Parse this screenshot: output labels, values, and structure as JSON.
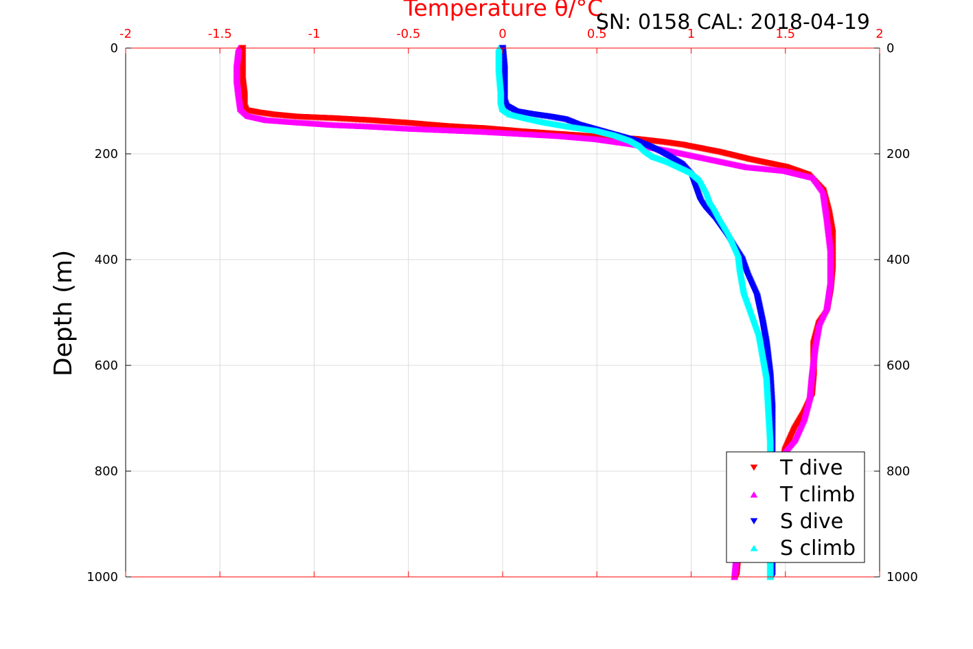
{
  "chart_data": {
    "type": "scatter",
    "title": "Temperature θ/°C",
    "subtitle": "SN: 0158  CAL: 2018-04-19",
    "xlabel": "Temperature θ/°C",
    "ylabel": "Depth (m)",
    "xlim": [
      -2,
      2
    ],
    "ylim": [
      0,
      1000
    ],
    "y_reversed": true,
    "grid": true,
    "legend_position": "bottom-right",
    "x_ticks": [
      "-2",
      "-1.5",
      "-1",
      "-0.5",
      "0",
      "0.5",
      "1",
      "1.5",
      "2"
    ],
    "y_ticks": [
      "0",
      "200",
      "400",
      "600",
      "800",
      "1000"
    ],
    "x_tick_values": [
      -2,
      -1.5,
      -1,
      -0.5,
      0,
      0.5,
      1,
      1.5,
      2
    ],
    "y_tick_values": [
      0,
      200,
      400,
      600,
      800,
      1000
    ],
    "colors": {
      "axis_top": "#ff0000",
      "grid": "#dcdcdc"
    },
    "series": [
      {
        "name": "T dive",
        "color": "#ff0000",
        "marker": "triangle-down",
        "x": [
          -1.38,
          -1.38,
          -1.38,
          -1.37,
          -1.37,
          -1.36,
          -1.3,
          -1.22,
          -1.1,
          -0.9,
          -0.7,
          -0.5,
          -0.3,
          -0.1,
          0.1,
          0.3,
          0.5,
          0.7,
          0.85,
          0.95,
          1.05,
          1.15,
          1.3,
          1.5,
          1.62,
          1.7,
          1.73,
          1.75,
          1.75,
          1.74,
          1.72,
          1.68,
          1.65,
          1.65,
          1.64,
          1.6,
          1.55,
          1.5,
          1.48,
          1.45,
          1.38,
          1.3,
          1.25,
          1.24
        ],
        "y": [
          0,
          30,
          60,
          90,
          110,
          118,
          122,
          126,
          130,
          133,
          137,
          142,
          148,
          152,
          158,
          163,
          168,
          172,
          178,
          183,
          190,
          197,
          210,
          225,
          240,
          270,
          310,
          350,
          420,
          460,
          500,
          520,
          560,
          620,
          660,
          690,
          720,
          760,
          800,
          830,
          870,
          920,
          960,
          1000
        ]
      },
      {
        "name": "T climb",
        "color": "#ff00ff",
        "marker": "triangle-up",
        "x": [
          -1.4,
          -1.41,
          -1.41,
          -1.4,
          -1.39,
          -1.35,
          -1.25,
          -1.1,
          -0.9,
          -0.7,
          -0.5,
          -0.3,
          -0.1,
          0.1,
          0.3,
          0.5,
          0.7,
          0.9,
          1.1,
          1.3,
          1.5,
          1.65,
          1.7,
          1.72,
          1.74,
          1.74,
          1.72,
          1.68,
          1.66,
          1.64,
          1.63,
          1.6,
          1.55,
          1.48,
          1.4,
          1.32,
          1.26,
          1.24,
          1.23
        ],
        "y": [
          0,
          30,
          60,
          90,
          115,
          128,
          136,
          140,
          145,
          148,
          152,
          155,
          158,
          162,
          166,
          172,
          182,
          195,
          210,
          225,
          232,
          245,
          270,
          320,
          380,
          440,
          490,
          520,
          560,
          620,
          660,
          700,
          740,
          770,
          820,
          870,
          920,
          960,
          1000
        ]
      },
      {
        "name": "S dive",
        "color": "#0000ff",
        "marker": "triangle-down",
        "x": [
          0.0,
          0.01,
          0.01,
          0.01,
          0.02,
          0.07,
          0.15,
          0.25,
          0.33,
          0.4,
          0.5,
          0.6,
          0.7,
          0.77,
          0.83,
          0.88,
          0.95,
          1.0,
          1.03,
          1.05,
          1.07,
          1.12,
          1.18,
          1.27,
          1.3,
          1.35,
          1.38,
          1.4,
          1.42,
          1.43,
          1.43,
          1.43,
          1.43,
          1.43
        ],
        "y": [
          0,
          40,
          80,
          100,
          110,
          120,
          125,
          130,
          135,
          145,
          155,
          165,
          175,
          185,
          195,
          205,
          220,
          240,
          270,
          290,
          300,
          320,
          350,
          400,
          430,
          470,
          520,
          560,
          620,
          680,
          740,
          800,
          900,
          1000
        ]
      },
      {
        "name": "S climb",
        "color": "#00ffff",
        "marker": "triangle-up",
        "x": [
          -0.02,
          -0.02,
          -0.01,
          -0.01,
          0.0,
          0.04,
          0.12,
          0.22,
          0.35,
          0.5,
          0.6,
          0.68,
          0.73,
          0.76,
          0.8,
          0.88,
          1.0,
          1.05,
          1.08,
          1.1,
          1.12,
          1.15,
          1.2,
          1.25,
          1.26,
          1.28,
          1.32,
          1.36,
          1.38,
          1.4,
          1.41,
          1.42,
          1.42,
          1.42,
          1.42
        ],
        "y": [
          0,
          40,
          80,
          100,
          115,
          125,
          132,
          140,
          148,
          156,
          165,
          175,
          185,
          195,
          205,
          215,
          235,
          250,
          270,
          290,
          300,
          320,
          350,
          390,
          420,
          460,
          500,
          540,
          580,
          620,
          680,
          740,
          800,
          900,
          1000
        ]
      }
    ]
  }
}
